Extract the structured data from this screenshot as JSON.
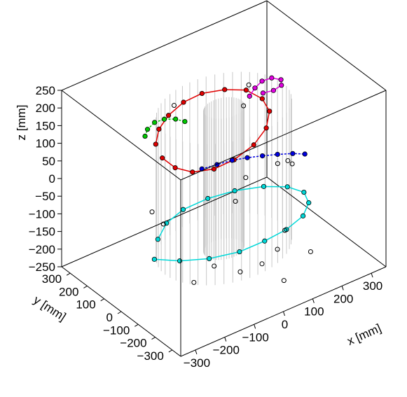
{
  "chart_data": {
    "type": "scatter",
    "title": "",
    "projection": "3d-box",
    "xlabel": "x [mm]",
    "ylabel": "y [mm]",
    "zlabel": "z [mm]",
    "xlim": [
      -350,
      350
    ],
    "ylim": [
      -350,
      350
    ],
    "zlim": [
      -250,
      250
    ],
    "x_ticks": [
      "−300",
      "−200",
      "−100",
      "0",
      "100",
      "200",
      "300"
    ],
    "y_ticks": [
      "300",
      "200",
      "100",
      "0",
      "−100",
      "−200",
      "−300"
    ],
    "z_ticks": [
      "250",
      "200",
      "150",
      "100",
      "50",
      "0",
      "−50",
      "−100",
      "−150",
      "−200",
      "−250"
    ],
    "grid": false,
    "legend": "none",
    "detector": {
      "shape": "cylindrical wire chamber",
      "color": "#c8c8c8",
      "outer_radius": 200,
      "inner_radius": 60,
      "z_half_length": 200
    },
    "series": [
      {
        "color": "#e00000",
        "kind": "helix-track",
        "points": [
          [
            -180,
            90,
            130
          ],
          [
            -140,
            140,
            140
          ],
          [
            -90,
            170,
            150
          ],
          [
            -30,
            185,
            160
          ],
          [
            30,
            180,
            165
          ],
          [
            90,
            150,
            165
          ],
          [
            140,
            110,
            160
          ],
          [
            160,
            50,
            150
          ],
          [
            150,
            -10,
            140
          ],
          [
            110,
            -60,
            125
          ],
          [
            50,
            -90,
            110
          ],
          [
            -20,
            -95,
            95
          ],
          [
            -80,
            -80,
            85
          ],
          [
            -130,
            -40,
            80
          ],
          [
            -160,
            10,
            85
          ],
          [
            -175,
            60,
            100
          ]
        ]
      },
      {
        "color": "#0000e0",
        "kind": "helix-track",
        "points": [
          [
            -40,
            60,
            20
          ],
          [
            0,
            40,
            25
          ],
          [
            40,
            20,
            30
          ],
          [
            80,
            0,
            30
          ],
          [
            120,
            -20,
            28
          ],
          [
            160,
            -40,
            25
          ],
          [
            200,
            -60,
            20
          ],
          [
            230,
            -80,
            15
          ]
        ]
      },
      {
        "color": "#00d8d8",
        "kind": "helix-track",
        "points": [
          [
            -260,
            -40,
            -120
          ],
          [
            -220,
            -120,
            -110
          ],
          [
            -160,
            -190,
            -100
          ],
          [
            -80,
            -230,
            -95
          ],
          [
            0,
            -240,
            -90
          ],
          [
            80,
            -230,
            -90
          ],
          [
            160,
            -190,
            -95
          ],
          [
            220,
            -120,
            -105
          ],
          [
            250,
            -40,
            -115
          ],
          [
            240,
            40,
            -125
          ],
          [
            200,
            110,
            -135
          ],
          [
            130,
            160,
            -140
          ],
          [
            50,
            180,
            -140
          ],
          [
            -40,
            170,
            -135
          ],
          [
            -120,
            130,
            -130
          ],
          [
            -190,
            60,
            -125
          ]
        ]
      },
      {
        "color": "#00c800",
        "kind": "helix-track",
        "points": [
          [
            -170,
            170,
            120
          ],
          [
            -150,
            190,
            125
          ],
          [
            -120,
            200,
            130
          ],
          [
            -90,
            195,
            130
          ],
          [
            -60,
            180,
            125
          ],
          [
            -40,
            160,
            118
          ]
        ]
      },
      {
        "color": "#e000e0",
        "kind": "helix-track",
        "points": [
          [
            140,
            90,
            150
          ],
          [
            170,
            110,
            155
          ],
          [
            200,
            120,
            160
          ],
          [
            230,
            115,
            160
          ],
          [
            250,
            95,
            155
          ],
          [
            240,
            75,
            150
          ],
          [
            210,
            70,
            148
          ],
          [
            180,
            80,
            148
          ]
        ]
      },
      {
        "color": "#000000",
        "kind": "unassigned-hits",
        "points": [
          [
            -120,
            -150,
            -150
          ],
          [
            -60,
            -200,
            -170
          ],
          [
            20,
            -190,
            -180
          ],
          [
            90,
            -160,
            -175
          ],
          [
            150,
            -100,
            -165
          ],
          [
            -200,
            10,
            -60
          ],
          [
            -210,
            60,
            -40
          ],
          [
            210,
            -40,
            -20
          ],
          [
            230,
            20,
            -40
          ],
          [
            230,
            80,
            -70
          ],
          [
            -30,
            -120,
            -10
          ],
          [
            40,
            -60,
            10
          ],
          [
            120,
            60,
            200
          ],
          [
            -100,
            120,
            200
          ],
          [
            160,
            160,
            90
          ],
          [
            -160,
            -100,
            -200
          ],
          [
            60,
            -250,
            -220
          ],
          [
            180,
            -200,
            -200
          ]
        ]
      }
    ]
  }
}
